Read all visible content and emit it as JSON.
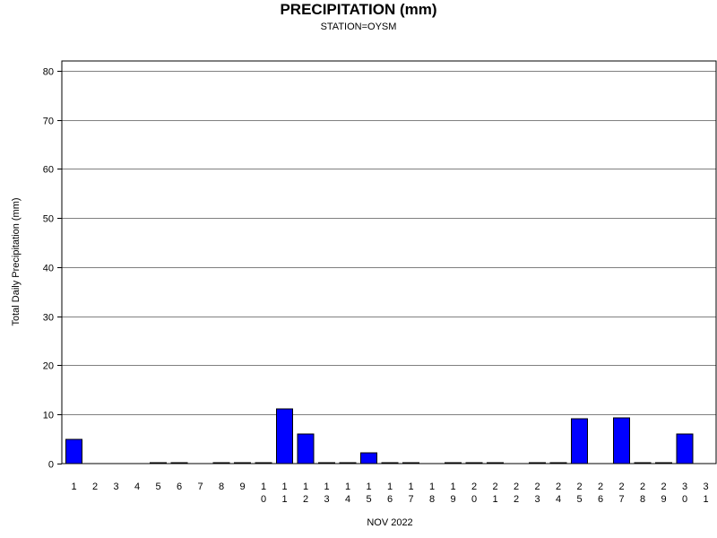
{
  "chart_data": {
    "type": "bar",
    "title": "PRECIPITATION (mm)",
    "subtitle": "STATION=OYSM",
    "xlabel": "NOV 2022",
    "ylabel": "Total Daily Precipitation (mm)",
    "ylim": [
      0,
      82
    ],
    "yticks": [
      0,
      10,
      20,
      30,
      40,
      50,
      60,
      70,
      80
    ],
    "grid": true,
    "categories": [
      "1",
      "2",
      "3",
      "4",
      "5",
      "6",
      "7",
      "8",
      "9",
      "10",
      "11",
      "12",
      "13",
      "14",
      "15",
      "16",
      "17",
      "18",
      "19",
      "20",
      "21",
      "22",
      "23",
      "24",
      "25",
      "26",
      "27",
      "28",
      "29",
      "30",
      "31"
    ],
    "values": [
      5.0,
      null,
      null,
      null,
      0.1,
      0.1,
      null,
      0.1,
      0.1,
      0.1,
      11.1,
      6.0,
      0.1,
      0.1,
      2.2,
      0.1,
      0.1,
      null,
      0.1,
      0.1,
      0.1,
      null,
      0.1,
      0.1,
      9.1,
      null,
      9.3,
      0.1,
      0.1,
      6.0,
      null
    ],
    "bar_color": "#0000ff"
  }
}
